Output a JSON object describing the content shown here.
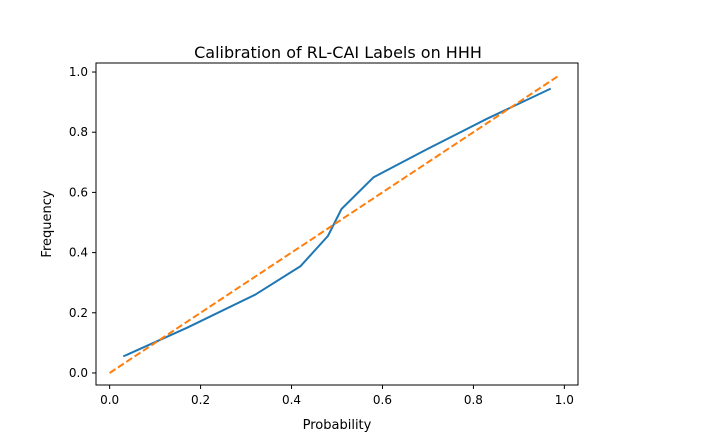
{
  "chart_data": {
    "type": "line",
    "title": "Calibration of RL-CAI Labels on HHH",
    "xlabel": "Probability",
    "ylabel": "Frequency",
    "xlim": [
      -0.03,
      1.03
    ],
    "ylim": [
      -0.04,
      1.03
    ],
    "xticks": [
      0.0,
      0.2,
      0.4,
      0.6,
      0.8,
      1.0
    ],
    "xtick_labels": [
      "0.0",
      "0.2",
      "0.4",
      "0.6",
      "0.8",
      "1.0"
    ],
    "yticks": [
      0.0,
      0.2,
      0.4,
      0.6,
      0.8,
      1.0
    ],
    "ytick_labels": [
      "0.0",
      "0.2",
      "0.4",
      "0.6",
      "0.8",
      "1.0"
    ],
    "grid": false,
    "series": [
      {
        "color": "#1f77b4",
        "style": "solid",
        "x": [
          0.03,
          0.17,
          0.32,
          0.42,
          0.48,
          0.51,
          0.58,
          0.7,
          0.83,
          0.97
        ],
        "y": [
          0.055,
          0.15,
          0.26,
          0.355,
          0.455,
          0.545,
          0.65,
          0.745,
          0.845,
          0.945
        ]
      },
      {
        "color": "#ff7f0e",
        "style": "dashed",
        "x": [
          0.0,
          0.99
        ],
        "y": [
          0.0,
          0.99
        ]
      }
    ]
  }
}
